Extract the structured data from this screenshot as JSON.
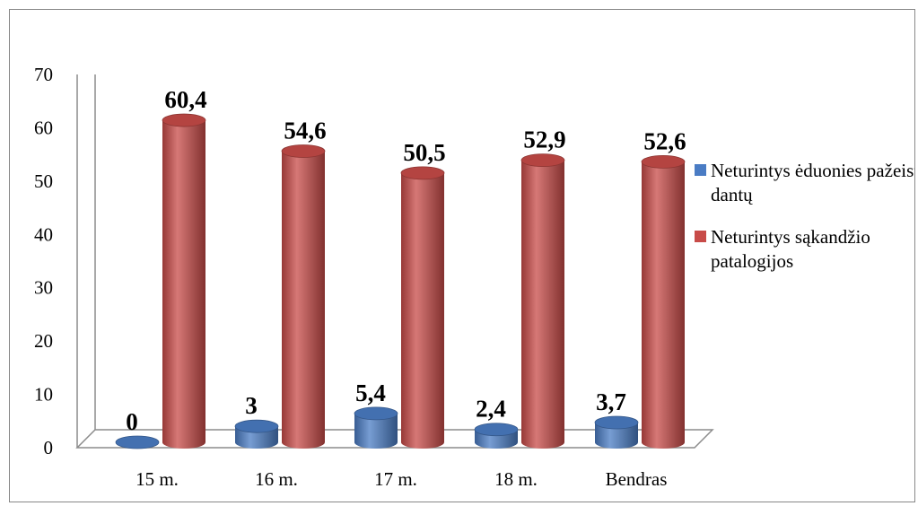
{
  "chart_data": {
    "type": "bar",
    "style": "3d-cylinder",
    "categories": [
      "15 m.",
      "16 m.",
      "17 m.",
      "18 m.",
      "Bendras"
    ],
    "series": [
      {
        "name": "Neturintys ėduonies pažeistų dantų",
        "color": "#4a7cc4",
        "values": [
          0,
          3,
          5.4,
          2.4,
          3.7
        ],
        "labels": [
          "0",
          "3",
          "5,4",
          "2,4",
          "3,7"
        ]
      },
      {
        "name": "Neturintys sąkandžio patalogijos",
        "color": "#c84b48",
        "values": [
          60.4,
          54.6,
          50.5,
          52.9,
          52.6
        ],
        "labels": [
          "60,4",
          "54,6",
          "50,5",
          "52,9",
          "52,6"
        ]
      }
    ],
    "y_ticks": [
      "0",
      "10",
      "20",
      "30",
      "40",
      "50",
      "60",
      "70"
    ],
    "ylim": [
      0,
      70
    ],
    "grid": false,
    "legend": "right"
  }
}
